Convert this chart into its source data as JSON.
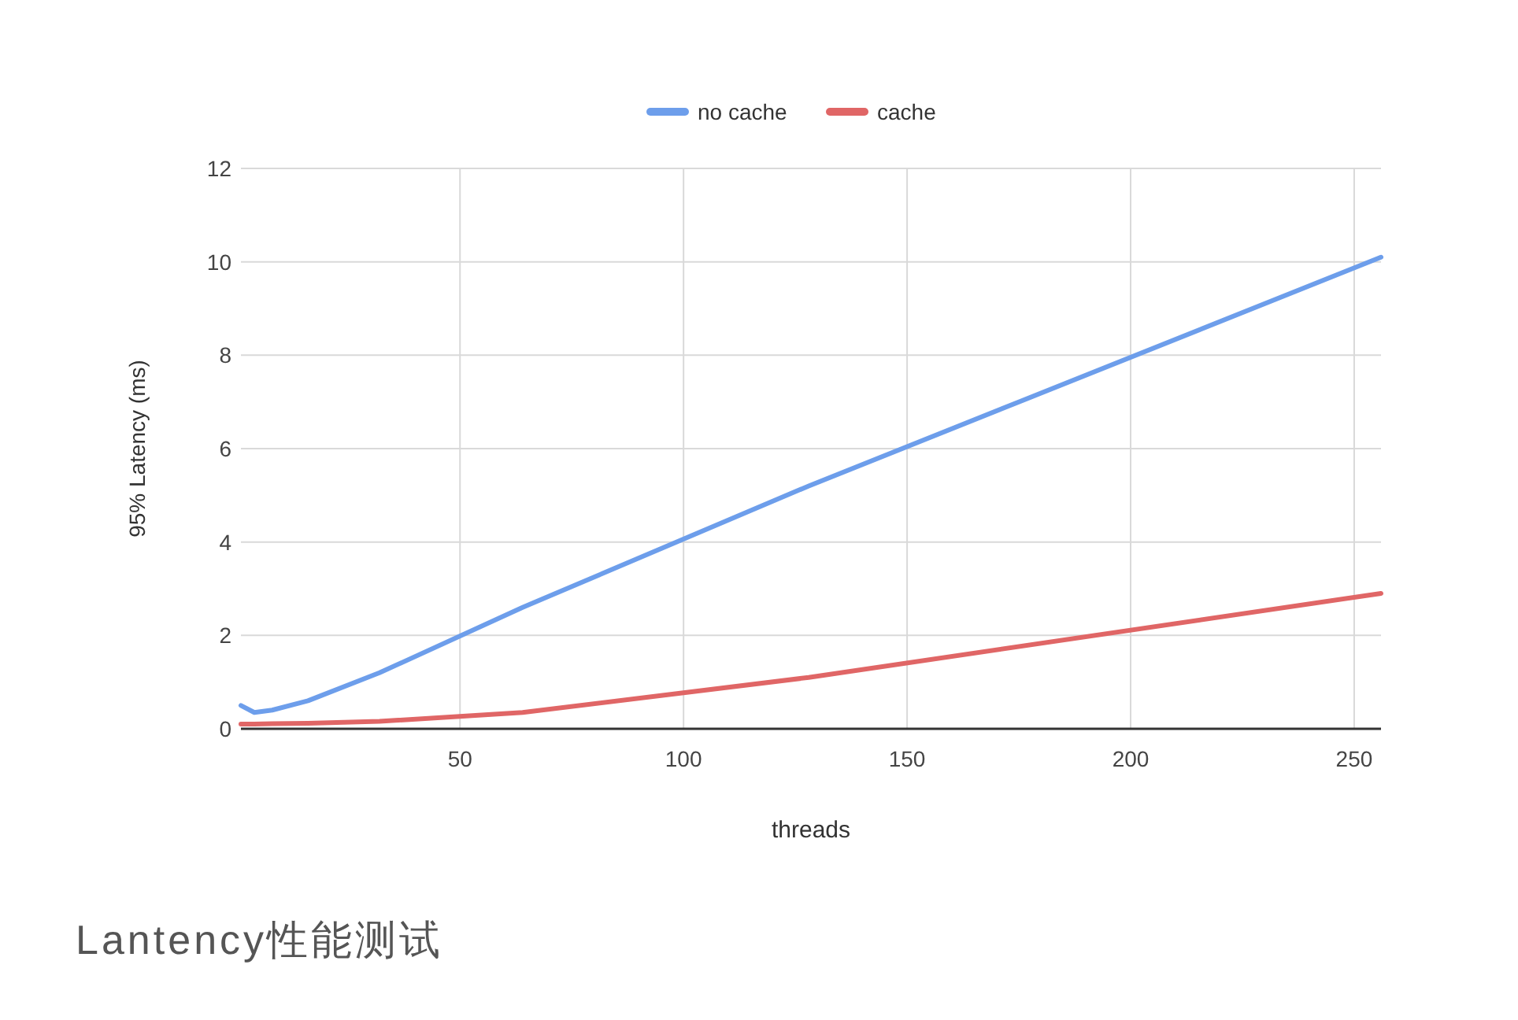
{
  "chart_data": {
    "type": "line",
    "xlabel": "threads",
    "ylabel": "95% Latency (ms)",
    "x": [
      1,
      4,
      8,
      16,
      32,
      64,
      128,
      256
    ],
    "series": [
      {
        "name": "no cache",
        "color": "#6d9eeb",
        "values": [
          0.5,
          0.35,
          0.4,
          0.6,
          1.2,
          2.6,
          5.2,
          10.1
        ]
      },
      {
        "name": "cache",
        "color": "#e06666",
        "values": [
          0.1,
          0.1,
          0.11,
          0.12,
          0.16,
          0.35,
          1.1,
          2.9
        ]
      }
    ],
    "xlim": [
      1,
      256
    ],
    "xticks": [
      50,
      100,
      150,
      200,
      250
    ],
    "ylim": [
      0,
      12
    ],
    "yticks": [
      0,
      2,
      4,
      6,
      8,
      10,
      12
    ],
    "grid": true,
    "legend": "top",
    "marker": "none",
    "line_style": "solid",
    "annotations": [
      "Lantency性能测试"
    ]
  }
}
